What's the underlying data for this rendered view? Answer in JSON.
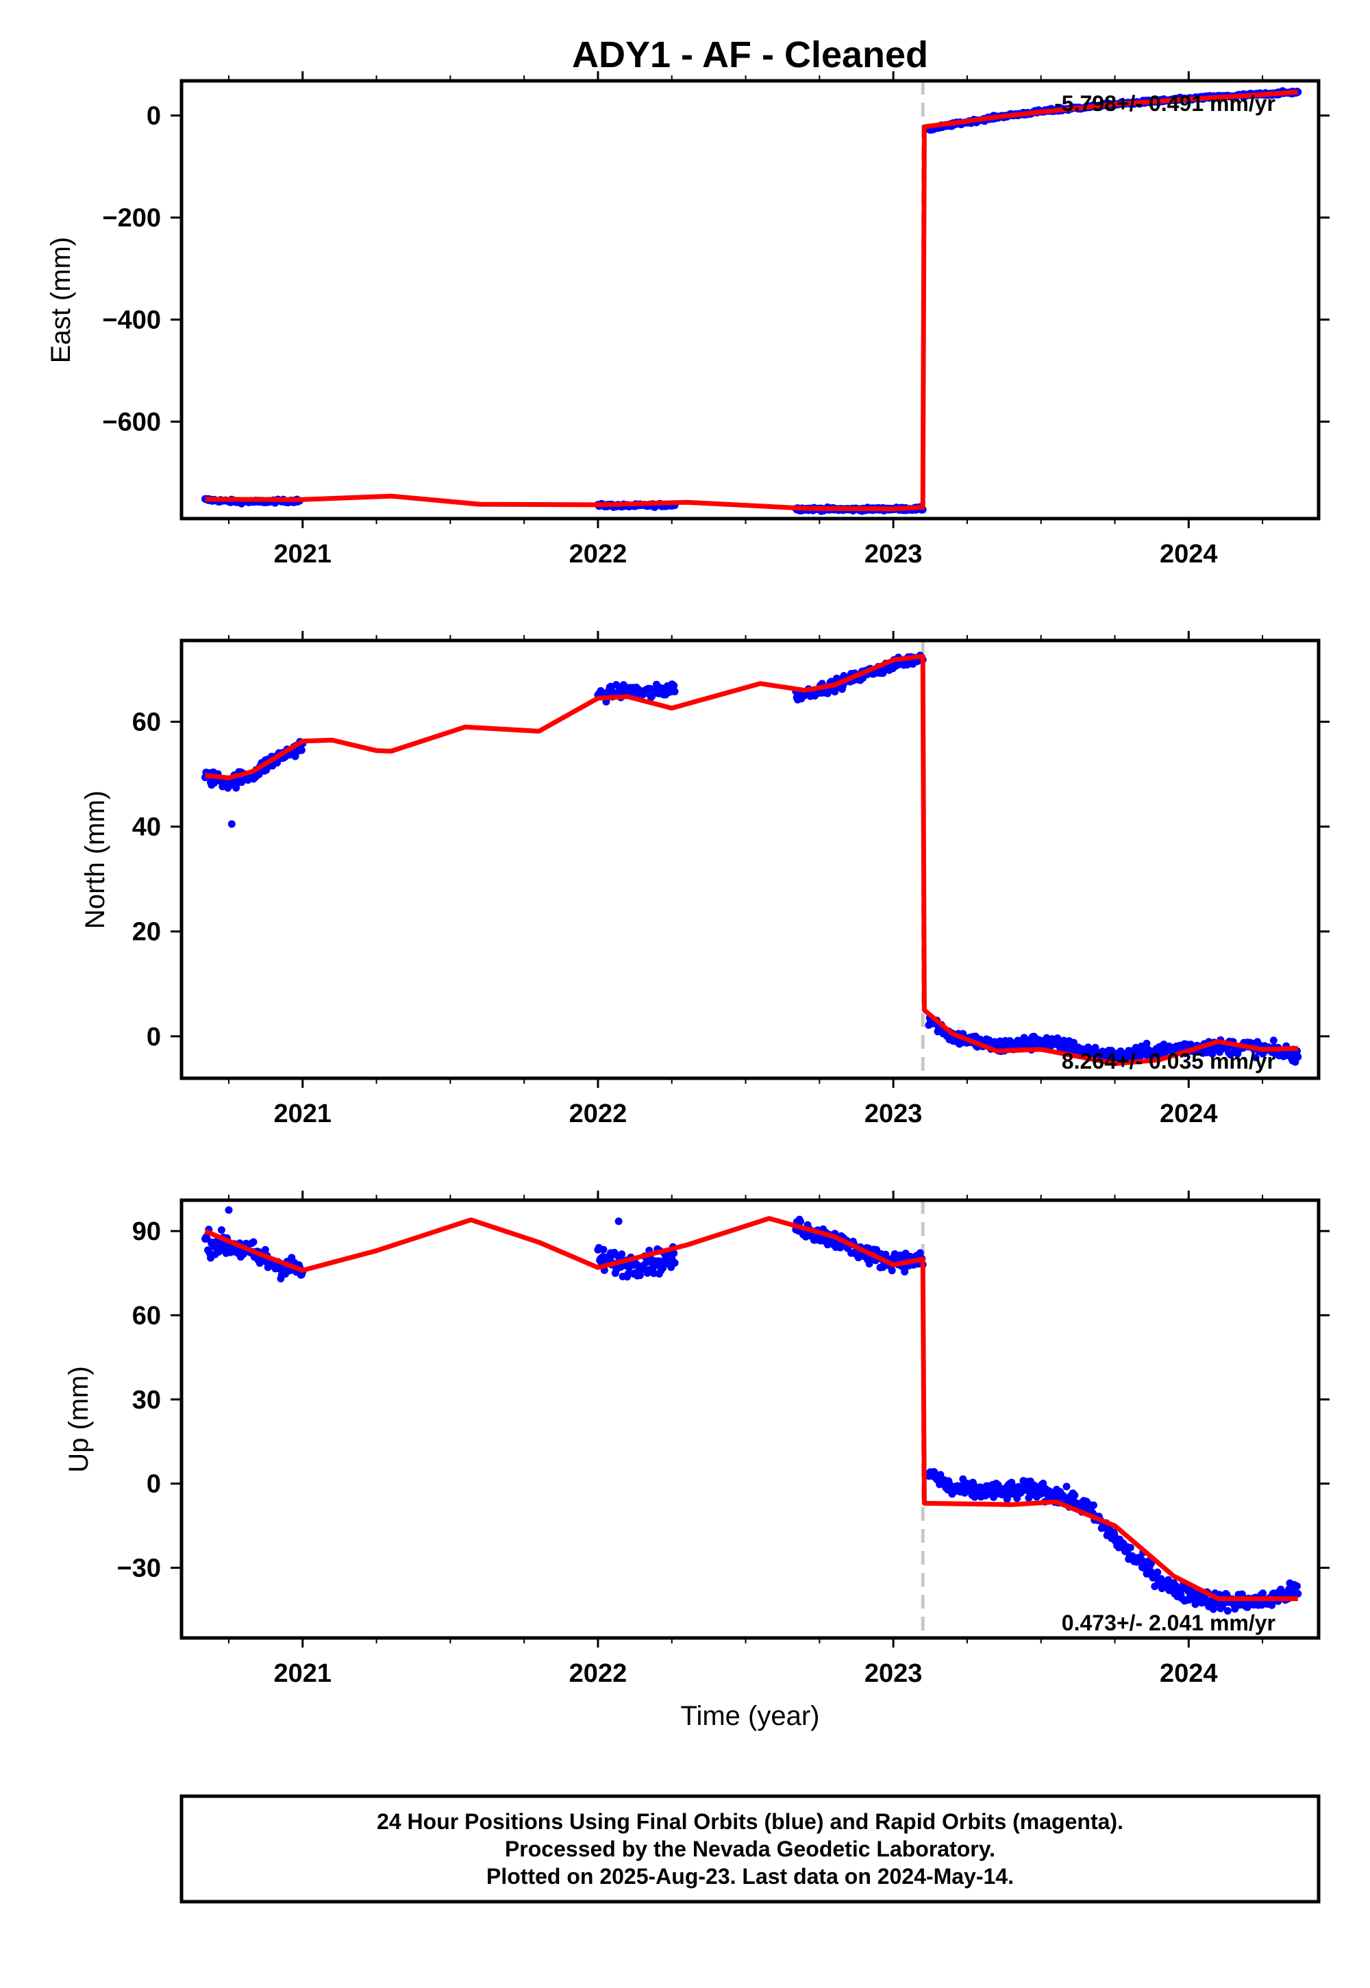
{
  "title": "ADY1  - AF - Cleaned",
  "xlabel": "Time (year)",
  "footer": [
    "24 Hour Positions Using Final Orbits (blue) and Rapid Orbits (magenta).",
    "Processed by the Nevada Geodetic Laboratory.",
    "Plotted on 2025-Aug-23. Last data on 2024-May-14."
  ],
  "colors": {
    "data": "#0000ff",
    "model": "#ff0000",
    "step": "#c8c8c8",
    "axis": "#000000"
  },
  "chart_data": [
    {
      "type": "scatter",
      "panel": "east",
      "ylabel": "East (mm)",
      "xlim": [
        2020.59,
        2024.44
      ],
      "ylim": [
        -790,
        68
      ],
      "yticks": [
        0,
        -200,
        -400,
        -600
      ],
      "xticks": [
        2021,
        2022,
        2023,
        2024
      ],
      "rate_text": "-5.798+/- 0.491 mm/yr",
      "rate_position": "top-right",
      "step_epoch": 2023.1,
      "data_segments": [
        {
          "start": 2020.67,
          "end": 2020.99,
          "points": [
            [
              2020.67,
              -753
            ],
            [
              2020.75,
              -756
            ],
            [
              2020.83,
              -757
            ],
            [
              2020.91,
              -756
            ],
            [
              2020.99,
              -755
            ]
          ],
          "noise": 3
        },
        {
          "start": 2022.0,
          "end": 2022.26,
          "points": [
            [
              2022.0,
              -764
            ],
            [
              2022.1,
              -765
            ],
            [
              2022.18,
              -764
            ],
            [
              2022.26,
              -763
            ]
          ],
          "noise": 3
        },
        {
          "start": 2022.67,
          "end": 2023.1,
          "points": [
            [
              2022.67,
              -771
            ],
            [
              2022.85,
              -772
            ],
            [
              2023.0,
              -771
            ],
            [
              2023.1,
              -771
            ]
          ],
          "noise": 3
        },
        {
          "start": 2023.12,
          "end": 2024.37,
          "points": [
            [
              2023.12,
              -27
            ],
            [
              2023.2,
              -18
            ],
            [
              2023.35,
              -3
            ],
            [
              2023.5,
              8
            ],
            [
              2023.75,
              22
            ],
            [
              2024.0,
              33
            ],
            [
              2024.2,
              40
            ],
            [
              2024.37,
              46
            ]
          ],
          "noise": 3
        }
      ],
      "model": [
        [
          2020.67,
          -752
        ],
        [
          2020.99,
          -753
        ],
        [
          2021.3,
          -746
        ],
        [
          2021.6,
          -762
        ],
        [
          2022.0,
          -763
        ],
        [
          2022.3,
          -758
        ],
        [
          2022.7,
          -770
        ],
        [
          2023.0,
          -771
        ],
        [
          2023.1,
          -768
        ],
        [
          2023.105,
          -22
        ],
        [
          2023.2,
          -15
        ],
        [
          2023.35,
          -3
        ],
        [
          2023.5,
          7
        ],
        [
          2023.75,
          22
        ],
        [
          2024.0,
          32
        ],
        [
          2024.2,
          39
        ],
        [
          2024.37,
          46
        ]
      ]
    },
    {
      "type": "scatter",
      "panel": "north",
      "ylabel": "North (mm)",
      "xlim": [
        2020.59,
        2024.44
      ],
      "ylim": [
        -8,
        75.5
      ],
      "yticks": [
        60,
        40,
        20,
        0
      ],
      "xticks": [
        2021,
        2022,
        2023,
        2024
      ],
      "rate_text": "8.264+/- 0.035 mm/yr",
      "rate_position": "bottom-right",
      "step_epoch": 2023.1,
      "data_segments": [
        {
          "start": 2020.67,
          "end": 2021.0,
          "points": [
            [
              2020.67,
              49.5
            ],
            [
              2020.75,
              48.5
            ],
            [
              2020.83,
              50
            ],
            [
              2020.91,
              53
            ],
            [
              2021.0,
              55.5
            ]
          ],
          "noise": 1.3
        },
        {
          "start": 2022.0,
          "end": 2022.26,
          "points": [
            [
              2022.0,
              65
            ],
            [
              2022.1,
              66
            ],
            [
              2022.18,
              65.5
            ],
            [
              2022.26,
              66.5
            ]
          ],
          "noise": 1.2
        },
        {
          "start": 2022.67,
          "end": 2023.1,
          "points": [
            [
              2022.67,
              65
            ],
            [
              2022.8,
              67
            ],
            [
              2022.95,
              70
            ],
            [
              2023.1,
              72.5
            ]
          ],
          "noise": 1.0
        },
        {
          "start": 2023.12,
          "end": 2024.37,
          "points": [
            [
              2023.12,
              3.5
            ],
            [
              2023.2,
              0
            ],
            [
              2023.35,
              -2
            ],
            [
              2023.5,
              -1
            ],
            [
              2023.75,
              -4
            ],
            [
              2024.0,
              -2
            ],
            [
              2024.2,
              -2
            ],
            [
              2024.37,
              -3.5
            ]
          ],
          "noise": 1.3
        }
      ],
      "outliers": [
        [
          2020.76,
          40.5
        ]
      ],
      "model": [
        [
          2020.67,
          49.8
        ],
        [
          2020.75,
          49.3
        ],
        [
          2020.83,
          50.5
        ],
        [
          2021.0,
          56.3
        ],
        [
          2021.1,
          56.5
        ],
        [
          2021.25,
          54.5
        ],
        [
          2021.3,
          54.4
        ],
        [
          2021.55,
          59
        ],
        [
          2021.8,
          58.2
        ],
        [
          2022.0,
          64.5
        ],
        [
          2022.1,
          64.8
        ],
        [
          2022.25,
          62.6
        ],
        [
          2022.55,
          67.3
        ],
        [
          2022.7,
          66
        ],
        [
          2022.8,
          67
        ],
        [
          2023.0,
          71.8
        ],
        [
          2023.1,
          72.5
        ],
        [
          2023.105,
          5
        ],
        [
          2023.2,
          0.5
        ],
        [
          2023.35,
          -2.8
        ],
        [
          2023.5,
          -2.5
        ],
        [
          2023.75,
          -5.2
        ],
        [
          2023.9,
          -4.5
        ],
        [
          2024.1,
          -1
        ],
        [
          2024.25,
          -2.5
        ],
        [
          2024.37,
          -2.3
        ]
      ]
    },
    {
      "type": "scatter",
      "panel": "up",
      "ylabel": "Up (mm)",
      "xlim": [
        2020.59,
        2024.44
      ],
      "ylim": [
        -55,
        101
      ],
      "yticks": [
        90,
        60,
        30,
        0,
        -30
      ],
      "xticks": [
        2021,
        2022,
        2023,
        2024
      ],
      "rate_text": "0.473+/- 2.041 mm/yr",
      "rate_position": "bottom-right",
      "step_epoch": 2023.1,
      "data_segments": [
        {
          "start": 2020.67,
          "end": 2021.0,
          "points": [
            [
              2020.67,
              86
            ],
            [
              2020.75,
              85
            ],
            [
              2020.83,
              82
            ],
            [
              2020.91,
              78
            ],
            [
              2021.0,
              76
            ]
          ],
          "noise": 4
        },
        {
          "start": 2022.0,
          "end": 2022.26,
          "points": [
            [
              2022.0,
              80
            ],
            [
              2022.1,
              78
            ],
            [
              2022.18,
              79
            ],
            [
              2022.26,
              80
            ]
          ],
          "noise": 4
        },
        {
          "start": 2022.67,
          "end": 2023.1,
          "points": [
            [
              2022.67,
              92
            ],
            [
              2022.8,
              87
            ],
            [
              2022.95,
              80
            ],
            [
              2023.1,
              79
            ]
          ],
          "noise": 3
        },
        {
          "start": 2023.12,
          "end": 2024.37,
          "points": [
            [
              2023.12,
              4
            ],
            [
              2023.2,
              -2
            ],
            [
              2023.35,
              -3
            ],
            [
              2023.5,
              -2
            ],
            [
              2023.65,
              -8
            ],
            [
              2023.8,
              -25
            ],
            [
              2023.95,
              -38
            ],
            [
              2024.1,
              -42
            ],
            [
              2024.25,
              -42
            ],
            [
              2024.37,
              -38
            ]
          ],
          "noise": 3
        }
      ],
      "outliers": [
        [
          2020.75,
          97.5
        ],
        [
          2022.07,
          93.5
        ]
      ],
      "model": [
        [
          2020.67,
          90
        ],
        [
          2020.85,
          82
        ],
        [
          2021.0,
          76
        ],
        [
          2021.25,
          83
        ],
        [
          2021.57,
          94
        ],
        [
          2021.8,
          86
        ],
        [
          2022.0,
          77
        ],
        [
          2022.3,
          85
        ],
        [
          2022.58,
          94.5
        ],
        [
          2022.8,
          88
        ],
        [
          2023.0,
          78
        ],
        [
          2023.1,
          80
        ],
        [
          2023.105,
          -7
        ],
        [
          2023.4,
          -7.5
        ],
        [
          2023.55,
          -6.5
        ],
        [
          2023.75,
          -15
        ],
        [
          2023.95,
          -33
        ],
        [
          2024.1,
          -41
        ],
        [
          2024.37,
          -41
        ]
      ]
    }
  ]
}
